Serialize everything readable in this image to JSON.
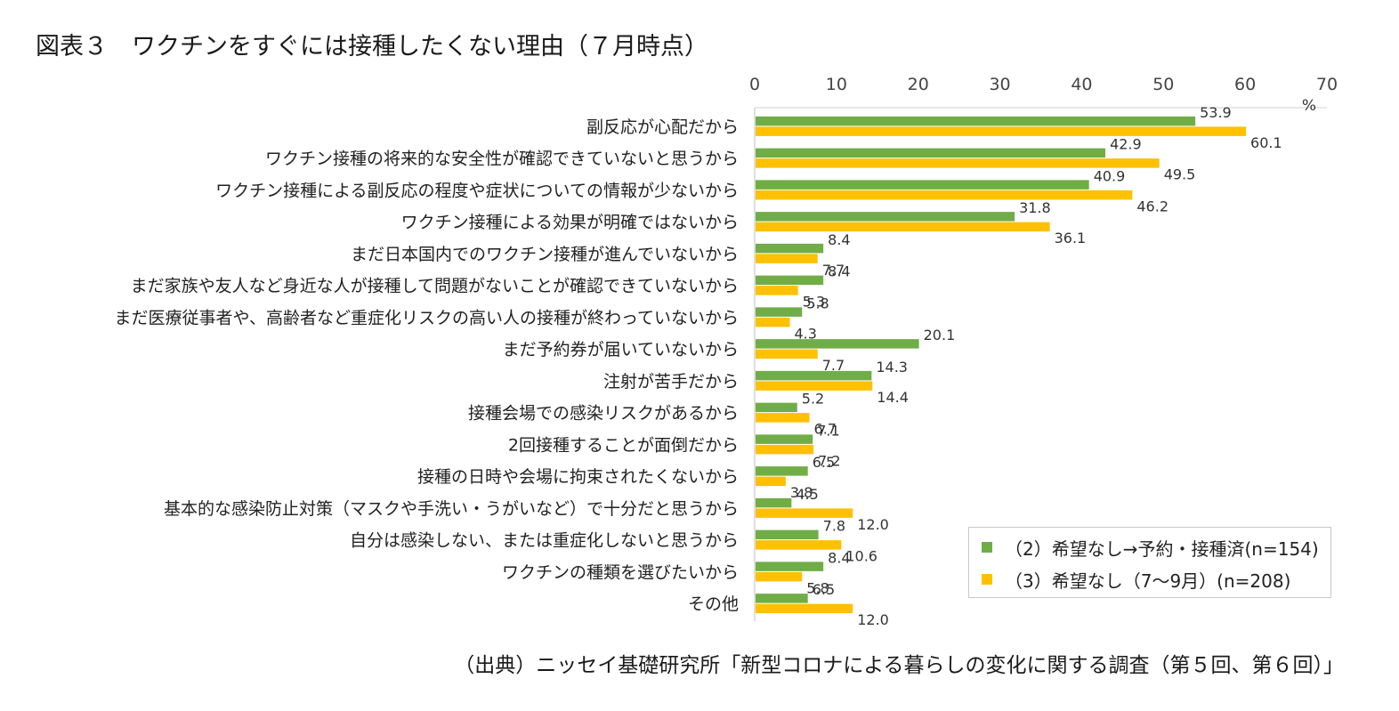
{
  "page": {
    "title": "図表３　ワクチンをすぐには接種したくない理由（７月時点）",
    "source": "（出典）ニッセイ基礎研究所「新型コロナによる暮らしの変化に関する調査（第５回、第６回）」"
  },
  "chart_data": {
    "type": "bar",
    "orientation": "horizontal",
    "title": "図表３　ワクチンをすぐには接種したくない理由（７月時点）",
    "xlabel": "",
    "unit_label": "%",
    "xlim": [
      0,
      70
    ],
    "xticks": [
      0,
      10,
      20,
      30,
      40,
      50,
      60,
      70
    ],
    "legend_position": "bottom-right",
    "categories": [
      "副反応が心配だから",
      "ワクチン接種の将来的な安全性が確認できていないと思うから",
      "ワクチン接種による副反応の程度や症状についての情報が少ないから",
      "ワクチン接種による効果が明確ではないから",
      "まだ日本国内でのワクチン接種が進んでいないから",
      "まだ家族や友人など身近な人が接種して問題がないことが確認できていないから",
      "まだ医療従事者や、高齢者など重症化リスクの高い人の接種が終わっていないから",
      "まだ予約券が届いていないから",
      "注射が苦手だから",
      "接種会場での感染リスクがあるから",
      "2回接種することが面倒だから",
      "接種の日時や会場に拘束されたくないから",
      "基本的な感染防止対策（マスクや手洗い・うがいなど）で十分だと思うから",
      "自分は感染しない、または重症化しないと思うから",
      "ワクチンの種類を選びたいから",
      "その他"
    ],
    "series": [
      {
        "name": "（2）希望なし→予約・接種済(n=154)",
        "color": "#70ad47",
        "values": [
          53.9,
          42.9,
          40.9,
          31.8,
          8.4,
          8.4,
          5.8,
          20.1,
          14.3,
          5.2,
          7.1,
          6.5,
          4.5,
          7.8,
          8.4,
          6.5
        ],
        "labels": [
          "53.9",
          "42.9",
          "40.9",
          "31.8",
          "8.4",
          "8.4",
          "5.8",
          "20.1",
          "14.3",
          "5.2",
          "7.1",
          "6.5",
          "4.5",
          "7.8",
          "8.4",
          "6.5"
        ]
      },
      {
        "name": "（3）希望なし（7～9月）(n=208)",
        "color": "#ffc000",
        "values": [
          60.1,
          49.5,
          46.2,
          36.1,
          7.7,
          5.3,
          4.3,
          7.7,
          14.4,
          6.7,
          7.2,
          3.8,
          12.0,
          10.6,
          5.8,
          12.0
        ],
        "labels": [
          "60.1",
          "49.5",
          "46.2",
          "36.1",
          "7.7",
          "5.3",
          "4.3",
          "7.7",
          "14.4",
          "6.7",
          "7.2",
          "3.8",
          "12.0",
          "10.6",
          "5.8",
          "12.0"
        ]
      }
    ]
  }
}
